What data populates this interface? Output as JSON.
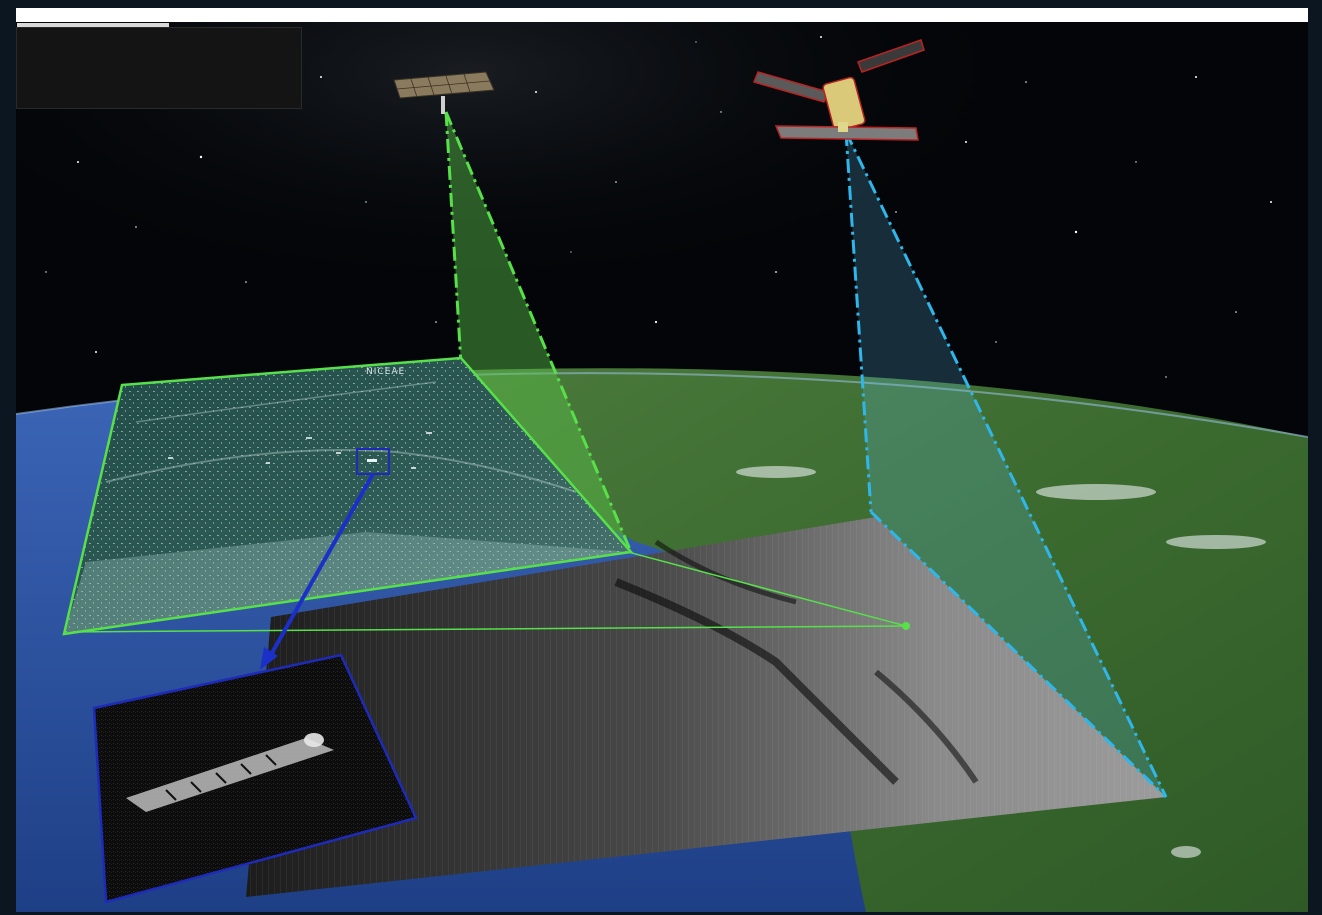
{
  "scene": {
    "space_color": "#030508",
    "ocean_color": "#2a4f9c",
    "land_color": "#3f6a33",
    "optical_outline_color": "#57e04a",
    "sar_outline_color": "#2fb6ea",
    "zoom_outline_color": "#1e2bb8",
    "zoom_arrow_color": "#1a30c8"
  },
  "panels": {
    "optical_image_label": "NICEAE"
  },
  "icons": {
    "optical_satellite": "satellite-icon",
    "sar_satellite": "sar-satellite-icon",
    "ship": "ship-icon"
  }
}
